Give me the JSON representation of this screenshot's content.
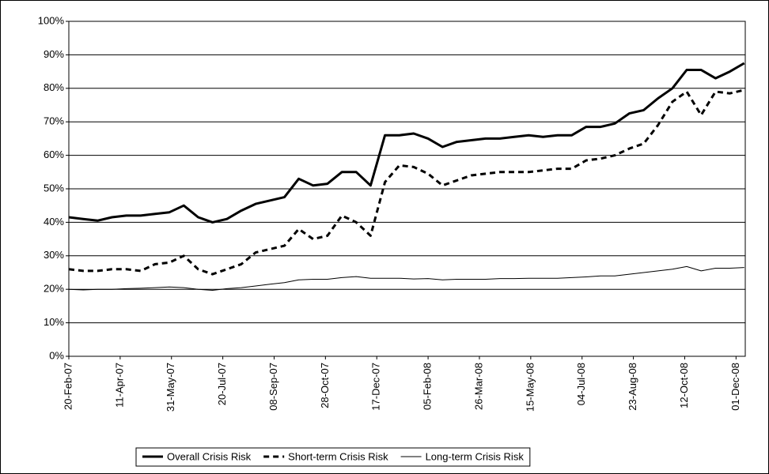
{
  "chart_data": {
    "type": "line",
    "x": [
      "2007-02-20",
      "2007-03-06",
      "2007-03-20",
      "2007-04-03",
      "2007-04-17",
      "2007-05-01",
      "2007-05-15",
      "2007-05-29",
      "2007-06-12",
      "2007-06-26",
      "2007-07-10",
      "2007-07-24",
      "2007-08-07",
      "2007-08-21",
      "2007-09-04",
      "2007-09-18",
      "2007-10-02",
      "2007-10-16",
      "2007-10-30",
      "2007-11-13",
      "2007-11-27",
      "2007-12-11",
      "2007-12-25",
      "2008-01-08",
      "2008-01-22",
      "2008-02-05",
      "2008-02-19",
      "2008-03-04",
      "2008-03-18",
      "2008-04-01",
      "2008-04-15",
      "2008-04-29",
      "2008-05-13",
      "2008-05-27",
      "2008-06-10",
      "2008-06-24",
      "2008-07-08",
      "2008-07-22",
      "2008-08-05",
      "2008-08-19",
      "2008-09-02",
      "2008-09-16",
      "2008-09-30",
      "2008-10-14",
      "2008-10-28",
      "2008-11-11",
      "2008-11-25",
      "2008-12-09"
    ],
    "series": [
      {
        "name": "Overall Crisis Risk",
        "color": "#000000",
        "style": "thick",
        "values": [
          41.5,
          41,
          40.5,
          41.5,
          42,
          42,
          42.5,
          43,
          45,
          41.5,
          40,
          41,
          43.5,
          45.5,
          46.5,
          47.5,
          53,
          51,
          51.5,
          55,
          55,
          51,
          66,
          66,
          66.5,
          65,
          62.5,
          64,
          64.5,
          65,
          65,
          65.5,
          66,
          65.5,
          66,
          66,
          68.5,
          68.5,
          69.5,
          72.5,
          73.5,
          77,
          80,
          85.5,
          85.5,
          83,
          85,
          87.5
        ]
      },
      {
        "name": "Short-term Crisis Risk",
        "color": "#000000",
        "style": "dashed",
        "values": [
          26,
          25.5,
          25.5,
          26,
          26,
          25.5,
          27.5,
          28,
          30,
          26,
          24.5,
          26,
          27.5,
          31,
          32,
          33,
          38,
          35,
          36,
          42,
          40,
          36,
          52,
          57,
          56.5,
          54.5,
          51,
          52.5,
          54,
          54.5,
          55,
          55,
          55,
          55.5,
          56,
          56,
          58.5,
          59,
          60,
          62,
          63.5,
          69,
          76,
          79,
          72,
          79,
          78.5,
          79.5
        ]
      },
      {
        "name": "Long-term Crisis Risk",
        "color": "#000000",
        "style": "thin",
        "values": [
          20,
          19.8,
          20,
          20,
          20.2,
          20.3,
          20.5,
          20.7,
          20.5,
          20,
          19.7,
          20.2,
          20.5,
          21,
          21.5,
          22,
          22.8,
          23,
          23,
          23.5,
          23.8,
          23.3,
          23.3,
          23.3,
          23.1,
          23.2,
          22.8,
          23,
          23,
          23,
          23.2,
          23.2,
          23.3,
          23.3,
          23.3,
          23.5,
          23.7,
          24,
          24,
          24.5,
          25,
          25.5,
          26,
          26.8,
          25.5,
          26.3,
          26.3,
          26.5
        ]
      }
    ],
    "xlim": [
      "2007-02-20",
      "2008-12-10"
    ],
    "xticks": [
      {
        "value": "2007-02-20",
        "label": "20-Feb-07"
      },
      {
        "value": "2007-04-11",
        "label": "11-Apr-07"
      },
      {
        "value": "2007-05-31",
        "label": "31-May-07"
      },
      {
        "value": "2007-07-20",
        "label": "20-Jul-07"
      },
      {
        "value": "2007-09-08",
        "label": "08-Sep-07"
      },
      {
        "value": "2007-10-28",
        "label": "28-Oct-07"
      },
      {
        "value": "2007-12-17",
        "label": "17-Dec-07"
      },
      {
        "value": "2008-02-05",
        "label": "05-Feb-08"
      },
      {
        "value": "2008-03-26",
        "label": "26-Mar-08"
      },
      {
        "value": "2008-05-15",
        "label": "15-May-08"
      },
      {
        "value": "2008-07-04",
        "label": "04-Jul-08"
      },
      {
        "value": "2008-08-23",
        "label": "23-Aug-08"
      },
      {
        "value": "2008-10-12",
        "label": "12-Oct-08"
      },
      {
        "value": "2008-12-01",
        "label": "01-Dec-08"
      }
    ],
    "ylim": [
      0,
      100
    ],
    "yticks": [
      {
        "value": 0,
        "label": "0%"
      },
      {
        "value": 10,
        "label": "10%"
      },
      {
        "value": 20,
        "label": "20%"
      },
      {
        "value": 30,
        "label": "30%"
      },
      {
        "value": 40,
        "label": "40%"
      },
      {
        "value": 50,
        "label": "50%"
      },
      {
        "value": 60,
        "label": "60%"
      },
      {
        "value": 70,
        "label": "70%"
      },
      {
        "value": 80,
        "label": "80%"
      },
      {
        "value": 90,
        "label": "90%"
      },
      {
        "value": 100,
        "label": "100%"
      }
    ],
    "grid": true,
    "legend": "bottom"
  }
}
